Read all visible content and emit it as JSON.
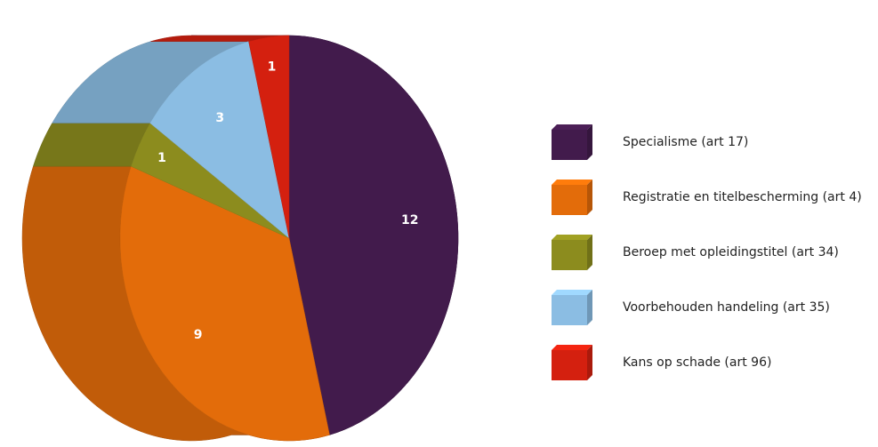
{
  "chart_data": {
    "type": "pie",
    "categories": [
      "Specialisme (art 17)",
      "Registratie en titelbescherming (art 4)",
      "Beroep met opleidingstitel (art 34)",
      "Voorbehouden handeling (art 35)",
      "Kans op schade (art 96)"
    ],
    "values": [
      12,
      9,
      1,
      3,
      1
    ],
    "colors": [
      "#421b4c",
      "#e36c0a",
      "#8c8c1e",
      "#8bbde3",
      "#d4200f"
    ]
  }
}
